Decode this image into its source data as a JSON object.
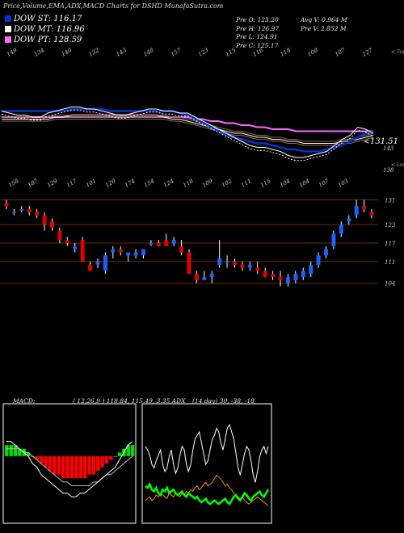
{
  "title": "Price,Volume,EMA,ADX,MACD Charts for DSHD MunafaSutra.com",
  "ma_legend": [
    {
      "label": "DOW ST: 116.17",
      "color": "#0033cc"
    },
    {
      "label": "DOW MT: 116.96",
      "color": "#ffffff"
    },
    {
      "label": "DOW PT: 128.59",
      "color": "#ff66ff"
    }
  ],
  "stats": {
    "open": "Pre  O: 123.20",
    "high": "Pre  H: 126.97",
    "low": "Pre  L: 124.91",
    "close": "Pre  C: 125.17",
    "avg_vol": "Avg V: 0.964  M",
    "pre_vol": "Pre  V: 2.852  M"
  },
  "top_label": "< Tops",
  "lows_label": "< Lows",
  "last_price": "131.51",
  "top_axis": [
    "143",
    "138"
  ],
  "right_axis": [
    "131",
    "123",
    "117",
    "111",
    "104"
  ],
  "macd_label": "MACD:",
  "macd_values": "( 12,26,9 ) 118.84, 115.49, 3.35  ADX",
  "adx_values": "(14  day) 30,  -38,  -18",
  "chart_data": [
    {
      "type": "line",
      "panel": "price-averages",
      "tops": [
        "149",
        "134",
        "140",
        "132",
        "143",
        "148",
        "157",
        "123",
        "115",
        "116",
        "118",
        "108",
        "107",
        "127"
      ],
      "series": [
        {
          "name": "DOW ST",
          "color": "#0033cc"
        },
        {
          "name": "DOW MT",
          "color": "#ffffff"
        },
        {
          "name": "DOW PT",
          "color": "#ff66ff"
        }
      ],
      "price": [
        139,
        138,
        137,
        137,
        136,
        136,
        138,
        139,
        140,
        141,
        141,
        140,
        140,
        139,
        138,
        137,
        137,
        138,
        139,
        140,
        140,
        139,
        139,
        138,
        138,
        136,
        134,
        132,
        130,
        128,
        126,
        124,
        122,
        121,
        121,
        120,
        119,
        117,
        116,
        116,
        117,
        118,
        119,
        122,
        125,
        127,
        131,
        130,
        128
      ],
      "ema_fast": [
        139,
        139,
        139,
        139,
        139,
        139,
        139,
        139,
        139,
        140,
        140,
        140,
        140,
        140,
        139,
        139,
        139,
        139,
        139,
        139,
        139,
        139,
        139,
        138,
        137,
        135,
        133,
        131,
        129,
        127,
        126,
        125,
        124,
        123,
        123,
        122,
        121,
        120,
        120,
        119,
        119,
        119,
        120,
        121,
        122,
        124,
        126,
        128,
        129
      ],
      "ema_mid": [
        135,
        135,
        135,
        135,
        135,
        135,
        135,
        136,
        136,
        136,
        136,
        136,
        136,
        136,
        136,
        136,
        136,
        136,
        136,
        136,
        136,
        136,
        135,
        135,
        134,
        133,
        132,
        131,
        130,
        129,
        128,
        128,
        127,
        126,
        126,
        125,
        125,
        124,
        124,
        123,
        123,
        123,
        123,
        123,
        124,
        124,
        125,
        126,
        127
      ],
      "ema_slow": [
        136,
        136,
        136,
        136,
        136,
        136,
        136,
        136,
        136,
        137,
        137,
        137,
        137,
        137,
        137,
        137,
        137,
        137,
        137,
        137,
        137,
        136,
        136,
        136,
        136,
        135,
        135,
        134,
        134,
        133,
        133,
        132,
        132,
        131,
        131,
        130,
        130,
        130,
        129,
        129,
        129,
        129,
        129,
        129,
        129,
        129,
        129,
        129,
        129
      ]
    },
    {
      "type": "candlestick",
      "panel": "price",
      "lows_labels": [
        "158",
        "187",
        "129",
        "117",
        "101",
        "120",
        "174",
        "154",
        "124",
        "118",
        "109",
        "102",
        "111",
        "115",
        "104",
        "104",
        "107",
        "103"
      ],
      "yticks": [
        104,
        111,
        117,
        123,
        131
      ],
      "ohlc": [
        {
          "o": 130,
          "h": 131,
          "l": 128,
          "c": 129
        },
        {
          "o": 127,
          "h": 128,
          "l": 126,
          "c": 127
        },
        {
          "o": 128,
          "h": 129,
          "l": 127,
          "c": 128
        },
        {
          "o": 128,
          "h": 129,
          "l": 126,
          "c": 127
        },
        {
          "o": 127,
          "h": 128,
          "l": 125,
          "c": 126
        },
        {
          "o": 126,
          "h": 127,
          "l": 121,
          "c": 123
        },
        {
          "o": 124,
          "h": 125,
          "l": 121,
          "c": 122
        },
        {
          "o": 121,
          "h": 122,
          "l": 117,
          "c": 118
        },
        {
          "o": 118,
          "h": 119,
          "l": 116,
          "c": 117
        },
        {
          "o": 115,
          "h": 117,
          "l": 114,
          "c": 116
        },
        {
          "o": 118,
          "h": 119,
          "l": 111,
          "c": 111
        },
        {
          "o": 110,
          "h": 111,
          "l": 108,
          "c": 108
        },
        {
          "o": 110,
          "h": 112,
          "l": 109,
          "c": 111
        },
        {
          "o": 108,
          "h": 114,
          "l": 107,
          "c": 113
        },
        {
          "o": 114,
          "h": 116,
          "l": 112,
          "c": 115
        },
        {
          "o": 115,
          "h": 116,
          "l": 113,
          "c": 114
        },
        {
          "o": 113,
          "h": 114,
          "l": 111,
          "c": 114
        },
        {
          "o": 113,
          "h": 115,
          "l": 112,
          "c": 114
        },
        {
          "o": 113,
          "h": 115,
          "l": 112,
          "c": 115
        },
        {
          "o": 117,
          "h": 118,
          "l": 116,
          "c": 117
        },
        {
          "o": 117,
          "h": 118,
          "l": 116,
          "c": 116
        },
        {
          "o": 118,
          "h": 120,
          "l": 116,
          "c": 116
        },
        {
          "o": 117,
          "h": 119,
          "l": 116,
          "c": 118
        },
        {
          "o": 116,
          "h": 118,
          "l": 113,
          "c": 114
        },
        {
          "o": 114,
          "h": 115,
          "l": 107,
          "c": 107
        },
        {
          "o": 107,
          "h": 108,
          "l": 104,
          "c": 105
        },
        {
          "o": 105,
          "h": 108,
          "l": 105,
          "c": 106
        },
        {
          "o": 106,
          "h": 108,
          "l": 104,
          "c": 107
        },
        {
          "o": 110,
          "h": 118,
          "l": 109,
          "c": 112
        },
        {
          "o": 111,
          "h": 113,
          "l": 109,
          "c": 111
        },
        {
          "o": 111,
          "h": 112,
          "l": 109,
          "c": 110
        },
        {
          "o": 110,
          "h": 111,
          "l": 108,
          "c": 109
        },
        {
          "o": 109,
          "h": 111,
          "l": 108,
          "c": 110
        },
        {
          "o": 109,
          "h": 111,
          "l": 107,
          "c": 108
        },
        {
          "o": 108,
          "h": 109,
          "l": 106,
          "c": 106
        },
        {
          "o": 107,
          "h": 108,
          "l": 105,
          "c": 106
        },
        {
          "o": 106,
          "h": 108,
          "l": 103,
          "c": 105
        },
        {
          "o": 104,
          "h": 107,
          "l": 103,
          "c": 106
        },
        {
          "o": 105,
          "h": 108,
          "l": 104,
          "c": 107
        },
        {
          "o": 106,
          "h": 109,
          "l": 105,
          "c": 108
        },
        {
          "o": 107,
          "h": 111,
          "l": 106,
          "c": 110
        },
        {
          "o": 110,
          "h": 114,
          "l": 109,
          "c": 113
        },
        {
          "o": 113,
          "h": 116,
          "l": 112,
          "c": 115
        },
        {
          "o": 116,
          "h": 121,
          "l": 115,
          "c": 120
        },
        {
          "o": 120,
          "h": 124,
          "l": 119,
          "c": 123
        },
        {
          "o": 124,
          "h": 126,
          "l": 123,
          "c": 125
        },
        {
          "o": 126,
          "h": 131,
          "l": 125,
          "c": 129
        },
        {
          "o": 129,
          "h": 131,
          "l": 127,
          "c": 128
        },
        {
          "o": 127,
          "h": 128,
          "l": 125,
          "c": 126
        }
      ]
    },
    {
      "type": "bar",
      "panel": "macd",
      "series": [
        {
          "name": "MACD",
          "color": "#ffffff"
        },
        {
          "name": "Signal",
          "color": "#bbbbbb"
        }
      ],
      "histogram": [
        3,
        3,
        3,
        2,
        2,
        1,
        0,
        -1,
        -2,
        -3,
        -4,
        -5,
        -5,
        -6,
        -6,
        -6,
        -6,
        -6,
        -6,
        -5,
        -5,
        -4,
        -3,
        -2,
        -1,
        0,
        1,
        2,
        3,
        3
      ],
      "macd": [
        4,
        4,
        3,
        2,
        1,
        0,
        -2,
        -3,
        -5,
        -6,
        -7,
        -8,
        -9,
        -10,
        -10,
        -11,
        -11,
        -10,
        -10,
        -9,
        -8,
        -7,
        -6,
        -5,
        -4,
        -3,
        -1,
        1,
        3,
        4
      ],
      "signal": [
        2,
        2,
        2,
        2,
        1,
        1,
        0,
        -1,
        -2,
        -3,
        -4,
        -5,
        -6,
        -7,
        -7,
        -8,
        -8,
        -8,
        -8,
        -8,
        -7,
        -7,
        -6,
        -5,
        -5,
        -4,
        -3,
        -2,
        -1,
        0
      ]
    },
    {
      "type": "line",
      "panel": "adx",
      "series": [
        {
          "name": "ADX",
          "color": "#ffffff"
        },
        {
          "name": "+DI",
          "color": "#00ff00"
        },
        {
          "name": "-DI",
          "color": "#ff8800"
        }
      ],
      "adx": [
        40,
        38,
        35,
        30,
        28,
        32,
        35,
        38,
        30,
        26,
        28,
        34,
        38,
        30,
        25,
        28,
        35,
        40,
        38,
        30,
        26,
        30,
        38,
        44,
        46,
        48,
        42,
        36,
        30,
        32,
        38,
        44,
        46,
        50,
        48,
        42,
        38,
        44,
        50,
        52,
        48,
        44,
        36,
        28,
        24,
        30,
        36,
        40,
        38,
        32,
        24,
        20,
        26,
        34,
        38,
        40,
        36,
        40
      ],
      "plus_di": [
        18,
        17,
        19,
        16,
        15,
        17,
        14,
        13,
        16,
        15,
        17,
        14,
        15,
        16,
        14,
        13,
        14,
        15,
        13,
        12,
        14,
        13,
        12,
        11,
        12,
        10,
        9,
        10,
        11,
        9,
        8,
        9,
        10,
        9,
        8,
        9,
        10,
        11,
        9,
        8,
        10,
        12,
        13,
        11,
        10,
        12,
        14,
        13,
        11,
        10,
        12,
        13,
        14,
        15,
        13,
        12,
        14,
        16
      ],
      "minus_di": [
        10,
        11,
        12,
        10,
        11,
        13,
        12,
        14,
        13,
        12,
        11,
        14,
        13,
        12,
        14,
        13,
        12,
        14,
        13,
        15,
        14,
        16,
        15,
        17,
        18,
        16,
        17,
        19,
        20,
        18,
        19,
        20,
        22,
        24,
        23,
        22,
        20,
        18,
        19,
        17,
        16,
        14,
        13,
        12,
        11,
        12,
        10,
        9,
        8,
        9,
        10,
        11,
        12,
        11,
        10,
        9,
        8,
        7
      ]
    }
  ]
}
